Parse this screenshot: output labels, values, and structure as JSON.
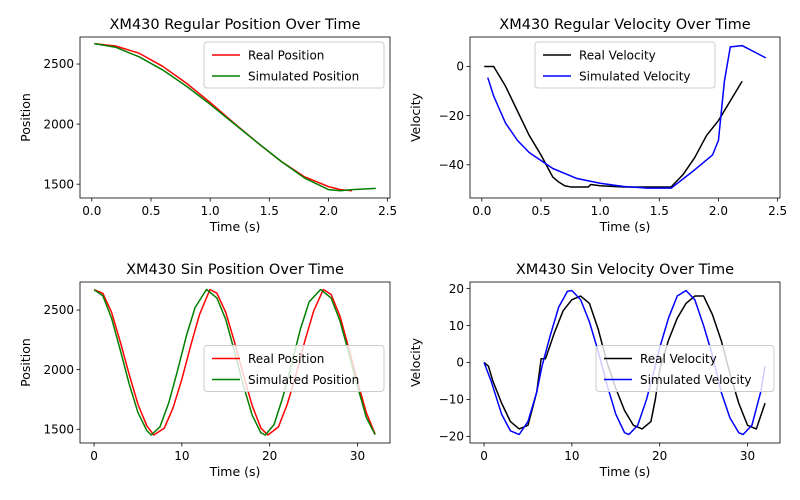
{
  "chart_data": [
    {
      "type": "line",
      "title": "XM430 Regular Position Over Time",
      "xlabel": "Time (s)",
      "ylabel": "Position",
      "xlim": [
        -0.1,
        2.52
      ],
      "ylim": [
        1385,
        2725
      ],
      "xticks": [
        0.0,
        0.5,
        1.0,
        1.5,
        2.0,
        2.5
      ],
      "xtick_labels": [
        "0.0",
        "0.5",
        "1.0",
        "1.5",
        "2.0",
        "2.5"
      ],
      "yticks": [
        1500,
        2000,
        2500
      ],
      "ytick_labels": [
        "1500",
        "2000",
        "2500"
      ],
      "grid": false,
      "legend": "upper right",
      "series": [
        {
          "name": "Real Position",
          "color": "#ff0000",
          "x": [
            0.02,
            0.2,
            0.4,
            0.6,
            0.8,
            1.0,
            1.2,
            1.4,
            1.6,
            1.8,
            2.0,
            2.1,
            2.2
          ],
          "y": [
            2670,
            2650,
            2590,
            2480,
            2340,
            2180,
            2010,
            1845,
            1690,
            1560,
            1480,
            1455,
            1445
          ]
        },
        {
          "name": "Simulated Position",
          "color": "#008000",
          "x": [
            0.02,
            0.2,
            0.4,
            0.6,
            0.8,
            1.0,
            1.2,
            1.4,
            1.6,
            1.8,
            2.0,
            2.1,
            2.2,
            2.4
          ],
          "y": [
            2670,
            2640,
            2560,
            2450,
            2315,
            2165,
            2005,
            1845,
            1690,
            1550,
            1455,
            1445,
            1455,
            1465
          ]
        }
      ]
    },
    {
      "type": "line",
      "title": "XM430 Regular Velocity Over Time",
      "xlabel": "Time (s)",
      "ylabel": "Velocity",
      "xlim": [
        -0.1,
        2.52
      ],
      "ylim": [
        -53.5,
        12
      ],
      "xticks": [
        0.0,
        0.5,
        1.0,
        1.5,
        2.0,
        2.5
      ],
      "xtick_labels": [
        "0.0",
        "0.5",
        "1.0",
        "1.5",
        "2.0",
        "2.5"
      ],
      "yticks": [
        -40,
        -20,
        0
      ],
      "ytick_labels": [
        "−40",
        "−20",
        "0"
      ],
      "grid": false,
      "legend": "upper center",
      "series": [
        {
          "name": "Real Velocity",
          "color": "#000000",
          "x": [
            0.02,
            0.05,
            0.1,
            0.2,
            0.3,
            0.4,
            0.5,
            0.6,
            0.65,
            0.7,
            0.75,
            0.9,
            0.92,
            1.0,
            1.2,
            1.4,
            1.5,
            1.6,
            1.7,
            1.8,
            1.9,
            2.0,
            2.1,
            2.2
          ],
          "y": [
            0,
            0,
            0,
            -8,
            -18,
            -28,
            -36,
            -45,
            -47,
            -48.5,
            -49,
            -49,
            -48,
            -48.5,
            -49,
            -49,
            -49,
            -49,
            -44,
            -37,
            -28,
            -22,
            -14,
            -6
          ]
        },
        {
          "name": "Simulated Velocity",
          "color": "#0000ff",
          "x": [
            0.05,
            0.1,
            0.2,
            0.3,
            0.4,
            0.6,
            0.8,
            1.0,
            1.2,
            1.4,
            1.6,
            1.8,
            1.95,
            2.0,
            2.05,
            2.1,
            2.2,
            2.4
          ],
          "y": [
            -4.5,
            -12,
            -23,
            -30,
            -35,
            -41.5,
            -45.5,
            -47.5,
            -48.8,
            -49.5,
            -49.5,
            -42,
            -36,
            -30,
            -6,
            8,
            8.5,
            3.5
          ]
        }
      ]
    },
    {
      "type": "line",
      "title": "XM430 Sin Position Over Time",
      "xlabel": "Time (s)",
      "ylabel": "Position",
      "xlim": [
        -1.6,
        33.7
      ],
      "ylim": [
        1385,
        2735
      ],
      "xticks": [
        0,
        10,
        20,
        30
      ],
      "xtick_labels": [
        "0",
        "10",
        "20",
        "30"
      ],
      "yticks": [
        1500,
        2000,
        2500
      ],
      "ytick_labels": [
        "1500",
        "2000",
        "2500"
      ],
      "grid": false,
      "legend": "center right",
      "series": [
        {
          "name": "Real Position",
          "color": "#ff0000",
          "x": [
            0,
            1,
            2,
            3,
            4,
            5,
            6,
            6.8,
            8,
            9,
            10,
            11,
            12,
            13.2,
            14,
            15,
            16,
            17,
            18,
            19,
            19.8,
            21,
            22,
            23,
            24,
            25,
            26.1,
            27,
            28,
            29,
            30,
            31,
            32
          ],
          "y": [
            2670,
            2640,
            2480,
            2230,
            1960,
            1710,
            1530,
            1452,
            1510,
            1680,
            1920,
            2200,
            2460,
            2672,
            2640,
            2480,
            2230,
            1960,
            1700,
            1510,
            1452,
            1520,
            1710,
            1960,
            2240,
            2490,
            2672,
            2630,
            2450,
            2180,
            1900,
            1640,
            1460
          ]
        },
        {
          "name": "Simulated Position",
          "color": "#008000",
          "x": [
            0,
            1,
            2,
            3,
            4,
            5,
            6,
            6.5,
            7.5,
            8.5,
            9.5,
            10.5,
            11.5,
            12.8,
            14,
            15,
            16,
            17,
            18,
            19,
            19.5,
            20.5,
            21.5,
            22.5,
            23.5,
            24.5,
            25.8,
            27,
            28,
            29,
            30,
            31,
            32
          ],
          "y": [
            2670,
            2620,
            2430,
            2160,
            1880,
            1640,
            1490,
            1452,
            1520,
            1720,
            1990,
            2280,
            2520,
            2672,
            2600,
            2420,
            2150,
            1870,
            1620,
            1470,
            1452,
            1540,
            1770,
            2050,
            2340,
            2570,
            2672,
            2600,
            2410,
            2140,
            1860,
            1600,
            1455
          ]
        }
      ]
    },
    {
      "type": "line",
      "title": "XM430 Sin Velocity Over Time",
      "xlabel": "Time (s)",
      "ylabel": "Velocity",
      "xlim": [
        -1.6,
        33.7
      ],
      "ylim": [
        -21.8,
        21.8
      ],
      "xticks": [
        0,
        10,
        20,
        30
      ],
      "xtick_labels": [
        "0",
        "10",
        "20",
        "30"
      ],
      "yticks": [
        -20,
        -10,
        0,
        10,
        20
      ],
      "ytick_labels": [
        "−20",
        "−10",
        "0",
        "10",
        "20"
      ],
      "grid": false,
      "legend": "center right",
      "series": [
        {
          "name": "Real Velocity",
          "color": "#000000",
          "x": [
            0,
            0.5,
            1,
            2,
            3,
            4,
            5,
            6,
            6.5,
            7,
            8,
            9,
            10,
            11,
            12,
            13,
            14,
            15,
            16,
            17,
            18,
            19,
            19.5,
            20,
            21,
            22,
            23,
            24,
            25,
            26,
            27,
            28,
            29,
            30,
            31,
            32
          ],
          "y": [
            0,
            -1,
            -5,
            -11,
            -16,
            -18,
            -17,
            -8,
            1,
            1,
            8,
            14,
            17,
            18,
            16,
            9,
            0,
            -7,
            -13,
            -17,
            -18,
            -16,
            -10,
            -2,
            6,
            12,
            16,
            18,
            18,
            13,
            6,
            -3,
            -11,
            -17,
            -18,
            -11
          ]
        },
        {
          "name": "Simulated Velocity",
          "color": "#0000ff",
          "x": [
            0,
            0.8,
            2,
            3,
            4,
            5,
            6,
            6.6,
            7.5,
            8.5,
            9.5,
            10,
            11,
            12,
            13,
            14,
            15,
            16,
            16.5,
            17.5,
            18.5,
            19.5,
            20,
            21,
            22,
            23,
            24,
            25,
            26,
            27,
            28,
            29,
            29.5,
            30.5,
            31.5,
            32
          ],
          "y": [
            0,
            -5,
            -14,
            -18.5,
            -19.5,
            -16,
            -8,
            -1,
            7,
            15,
            19.3,
            19.5,
            17,
            11,
            3,
            -6,
            -14,
            -19,
            -19.5,
            -17,
            -10,
            -1,
            4,
            12,
            18,
            19.5,
            17,
            10,
            2,
            -8,
            -15,
            -19,
            -19.5,
            -17,
            -8,
            -1
          ]
        }
      ]
    }
  ]
}
